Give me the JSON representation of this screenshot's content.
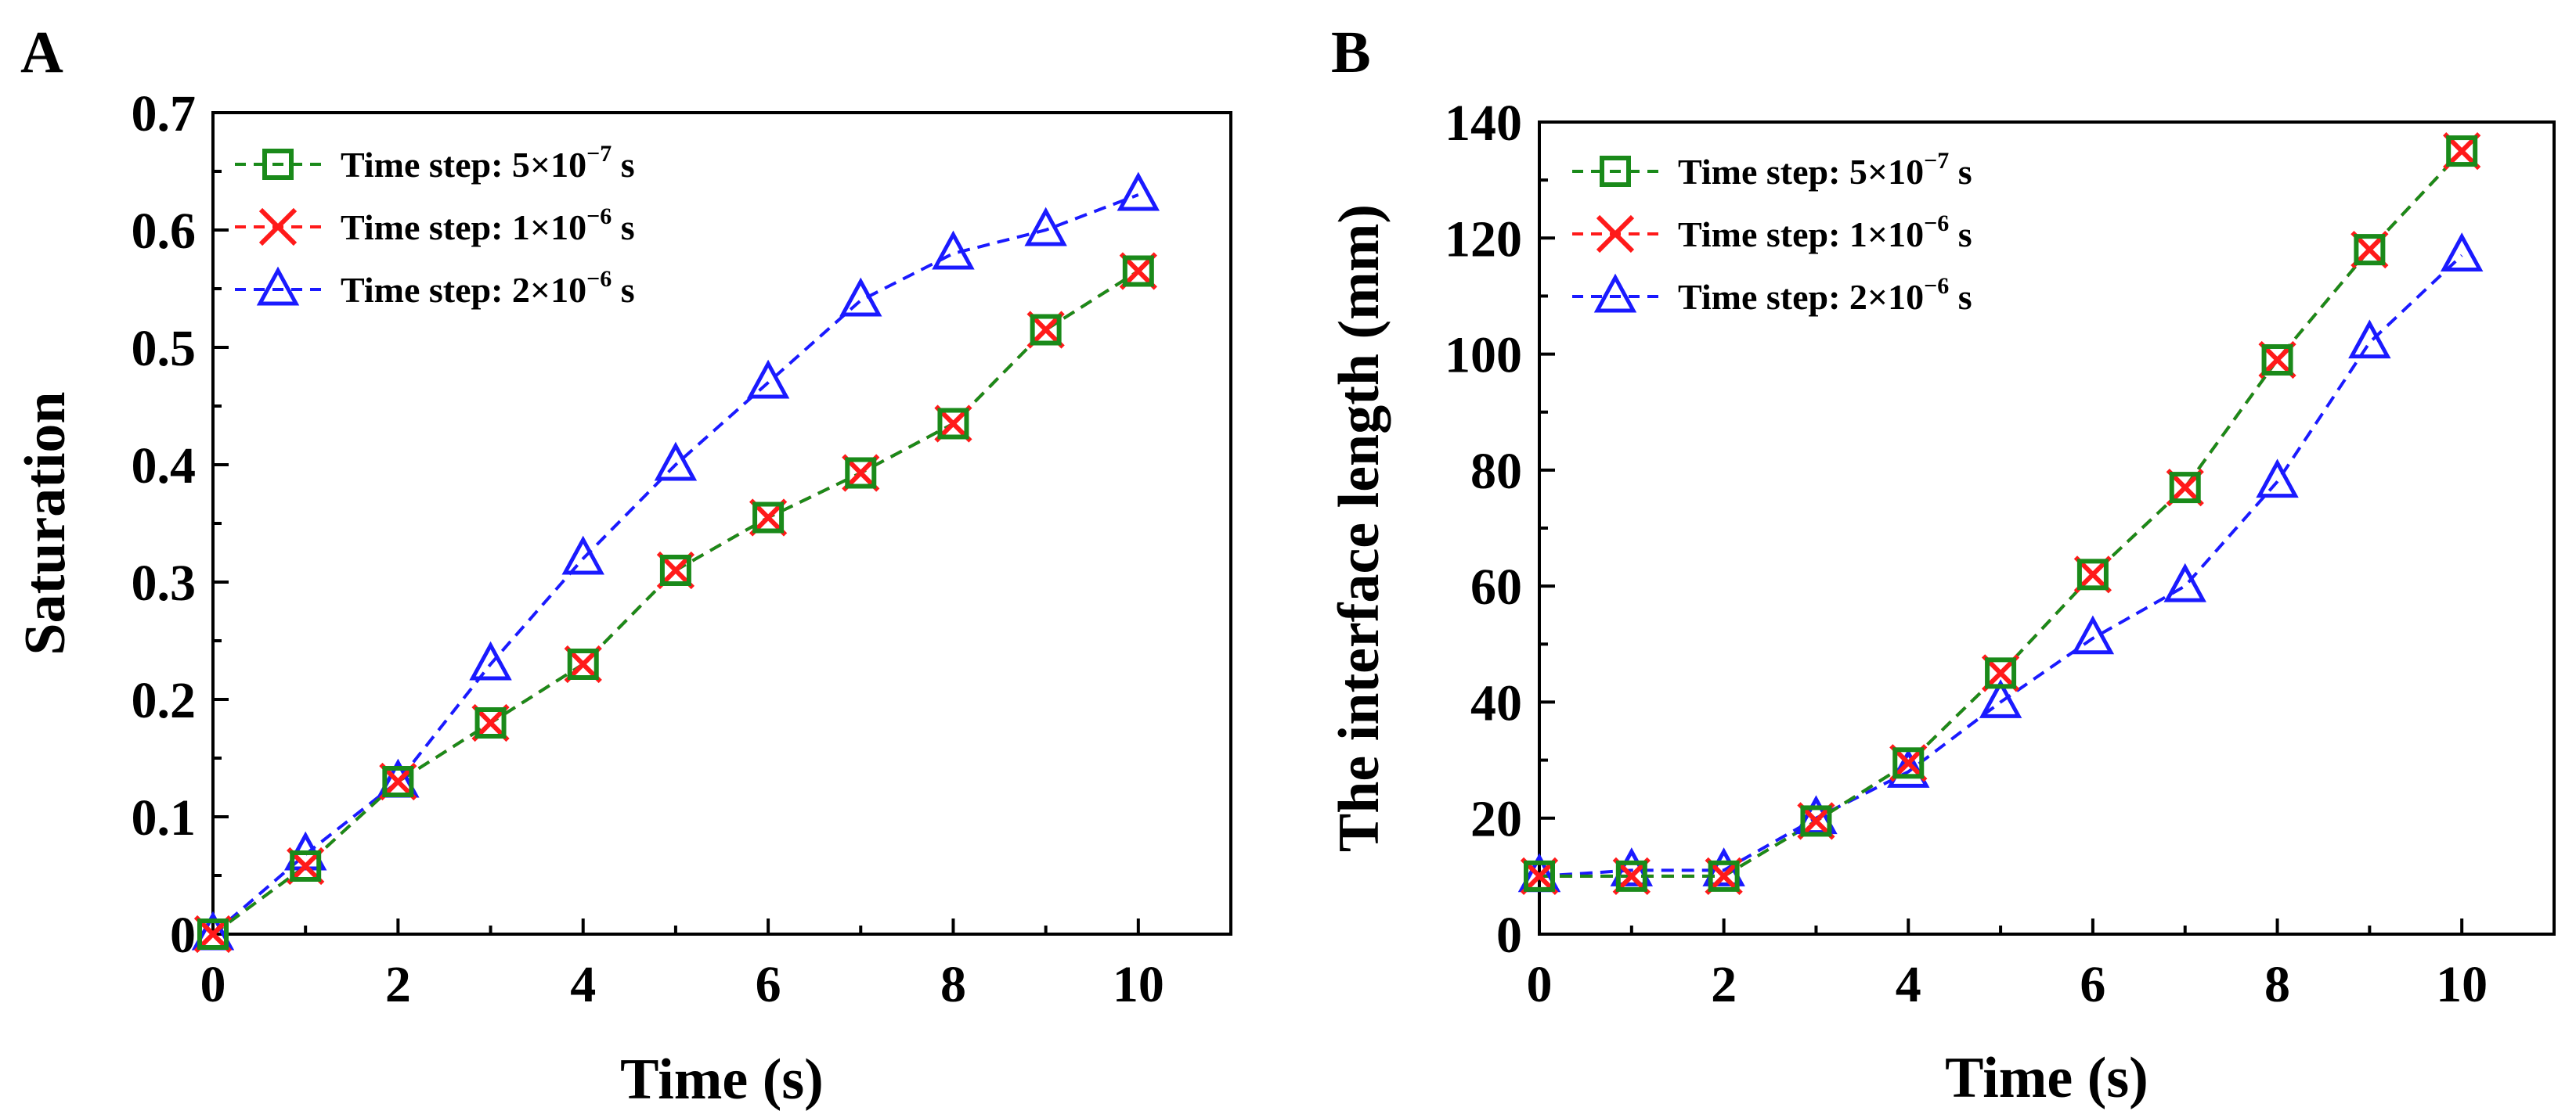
{
  "chart_data": [
    {
      "panel": "A",
      "type": "line",
      "title": "",
      "xlabel": "Time (s)",
      "ylabel": "Saturation",
      "xlim": [
        0,
        11
      ],
      "ylim": [
        0,
        0.7
      ],
      "xticks": [
        0,
        2,
        4,
        6,
        8,
        10
      ],
      "yticks": [
        0,
        0.1,
        0.2,
        0.3,
        0.4,
        0.5,
        0.6,
        0.7
      ],
      "ytick_labels": [
        "0",
        "0.1",
        "0.2",
        "0.3",
        "0.4",
        "0.5",
        "0.6",
        "0.7"
      ],
      "grid": false,
      "legend_position": "top-left",
      "x": [
        0,
        1,
        2,
        3,
        4,
        5,
        6,
        7,
        8,
        9,
        10
      ],
      "series": [
        {
          "name": "Time step: 5×10",
          "exponent": "−7",
          "unit": " s",
          "color": "#1a8a1a",
          "marker": "square",
          "values": [
            0,
            0.058,
            0.13,
            0.18,
            0.23,
            0.31,
            0.355,
            0.393,
            0.435,
            0.515,
            0.565
          ]
        },
        {
          "name": "Time step: 1×10",
          "exponent": "−6",
          "unit": " s",
          "color": "#ff1a1a",
          "marker": "x",
          "values": [
            0,
            0.058,
            0.13,
            0.18,
            0.23,
            0.31,
            0.355,
            0.393,
            0.435,
            0.515,
            0.565
          ]
        },
        {
          "name": "Time step: 2×10",
          "exponent": "−6",
          "unit": " s",
          "color": "#1a1aff",
          "marker": "triangle",
          "values": [
            0,
            0.068,
            0.13,
            0.23,
            0.32,
            0.4,
            0.47,
            0.54,
            0.58,
            0.6,
            0.63
          ]
        }
      ]
    },
    {
      "panel": "B",
      "type": "line",
      "title": "",
      "xlabel": "Time (s)",
      "ylabel": "The interface length (mm)",
      "xlim": [
        0,
        11
      ],
      "ylim": [
        0,
        140
      ],
      "xticks": [
        0,
        2,
        4,
        6,
        8,
        10
      ],
      "yticks": [
        0,
        20,
        40,
        60,
        80,
        100,
        120,
        140
      ],
      "ytick_labels": [
        "0",
        "20",
        "40",
        "60",
        "80",
        "100",
        "120",
        "140"
      ],
      "grid": false,
      "legend_position": "top-left",
      "x": [
        0,
        1,
        2,
        3,
        4,
        5,
        6,
        7,
        8,
        9,
        10
      ],
      "series": [
        {
          "name": "Time step: 5×10",
          "exponent": "−7",
          "unit": " s",
          "color": "#1a8a1a",
          "marker": "square",
          "values": [
            10,
            10,
            10,
            19.5,
            29.5,
            45,
            62,
            77,
            99,
            118,
            135
          ]
        },
        {
          "name": "Time step: 1×10",
          "exponent": "−6",
          "unit": " s",
          "color": "#ff1a1a",
          "marker": "x",
          "values": [
            10,
            10,
            10,
            19.5,
            29.5,
            45,
            62,
            77,
            99,
            118,
            135
          ]
        },
        {
          "name": "Time step: 2×10",
          "exponent": "−6",
          "unit": " s",
          "color": "#1a1aff",
          "marker": "triangle",
          "values": [
            10,
            11,
            11,
            20,
            28,
            40,
            51,
            60,
            78,
            102,
            117
          ]
        }
      ]
    }
  ]
}
